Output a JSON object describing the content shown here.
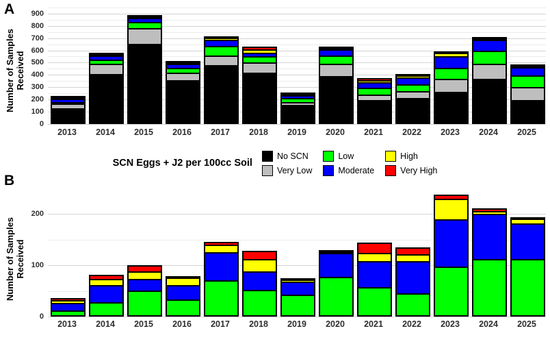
{
  "legend": {
    "title": "SCN Eggs + J2 per 100cc Soil",
    "items": [
      {
        "label": "No SCN",
        "color": "#000000"
      },
      {
        "label": "Very Low",
        "color": "#BEBEBE"
      },
      {
        "label": "Low",
        "color": "#00FF00"
      },
      {
        "label": "Moderate",
        "color": "#0000FF"
      },
      {
        "label": "High",
        "color": "#FFFF00"
      },
      {
        "label": "Very High",
        "color": "#FF0000"
      }
    ]
  },
  "chart_data": [
    {
      "type": "bar",
      "stacked": true,
      "panel_label": "A",
      "ylabel": "Number of Samples Received",
      "xlabel": "",
      "categories": [
        "2013",
        "2014",
        "2015",
        "2016",
        "2017",
        "2018",
        "2019",
        "2020",
        "2021",
        "2022",
        "2023",
        "2024",
        "2025"
      ],
      "series": [
        {
          "name": "No SCN",
          "color": "#000000",
          "values": [
            118,
            397,
            640,
            345,
            470,
            406,
            143,
            382,
            183,
            201,
            251,
            358,
            186
          ]
        },
        {
          "name": "Very Low",
          "color": "#BEBEBE",
          "values": [
            37,
            84,
            130,
            65,
            75,
            88,
            22,
            97,
            45,
            54,
            106,
            122,
            103
          ]
        },
        {
          "name": "Low",
          "color": "#00FF00",
          "values": [
            8,
            31,
            50,
            37,
            78,
            45,
            34,
            70,
            55,
            58,
            89,
            106,
            99
          ]
        },
        {
          "name": "Moderate",
          "color": "#0000FF",
          "values": [
            27,
            34,
            33,
            32,
            53,
            33,
            23,
            50,
            47,
            58,
            94,
            88,
            63
          ]
        },
        {
          "name": "High",
          "color": "#FFFF00",
          "values": [
            2,
            12,
            12,
            13,
            14,
            24,
            3,
            2,
            15,
            13,
            30,
            8,
            12
          ]
        },
        {
          "name": "Very High",
          "color": "#FF0000",
          "values": [
            3,
            10,
            5,
            5,
            5,
            24,
            3,
            2,
            20,
            9,
            11,
            7,
            6
          ]
        }
      ],
      "y_ticks": [
        0,
        100,
        200,
        300,
        400,
        500,
        600,
        700,
        800,
        900
      ],
      "y_minor_ticks": [
        50,
        150,
        250,
        350,
        450,
        550,
        650,
        750,
        850,
        950
      ],
      "ylim": [
        0,
        960
      ],
      "grid": true,
      "legend_position": "below-panel-center"
    },
    {
      "type": "bar",
      "stacked": true,
      "panel_label": "B",
      "ylabel": "Number of Samples Received",
      "xlabel": "",
      "categories": [
        "2013",
        "2014",
        "2015",
        "2016",
        "2017",
        "2018",
        "2019",
        "2020",
        "2021",
        "2022",
        "2023",
        "2024",
        "2025"
      ],
      "series": [
        {
          "name": "Low",
          "color": "#00FF00",
          "values": [
            10,
            26,
            48,
            31,
            68,
            50,
            40,
            75,
            55,
            43,
            95,
            109,
            110
          ]
        },
        {
          "name": "Moderate",
          "color": "#0000FF",
          "values": [
            14,
            33,
            23,
            28,
            55,
            36,
            25,
            46,
            50,
            63,
            92,
            88,
            69
          ]
        },
        {
          "name": "High",
          "color": "#FFFF00",
          "values": [
            5,
            12,
            15,
            14,
            14,
            24,
            4,
            3,
            16,
            13,
            40,
            6,
            9
          ]
        },
        {
          "name": "Very High",
          "color": "#FF0000",
          "values": [
            4,
            8,
            12,
            3,
            6,
            15,
            3,
            1,
            20,
            13,
            8,
            5,
            1
          ]
        }
      ],
      "y_ticks": [
        0,
        100,
        200
      ],
      "y_minor_ticks": [
        50,
        150
      ],
      "ylim": [
        0,
        243
      ],
      "grid": true,
      "legend_position": "none"
    }
  ]
}
